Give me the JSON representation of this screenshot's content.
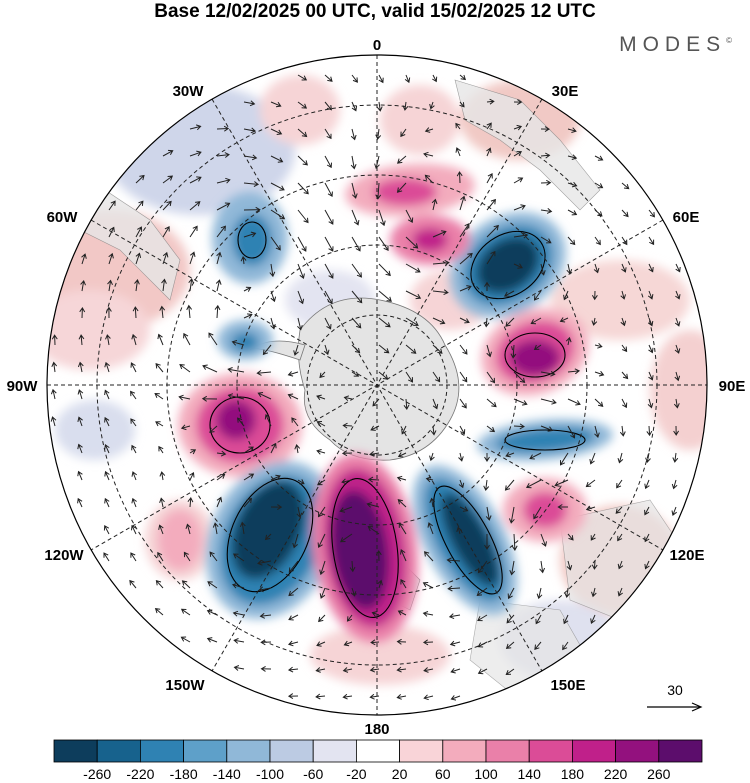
{
  "header": {
    "title": "Base 12/02/2025 00 UTC, valid 15/02/2025 12 UTC",
    "brand": "MODES",
    "brand_mark": "©"
  },
  "map": {
    "projection": "south-polar-stereographic",
    "longitude_labels": {
      "top": "0",
      "top_right_a": "30E",
      "top_right_b": "60E",
      "right": "90E",
      "bottom_right_a": "120E",
      "bottom_right_b": "150E",
      "bottom": "180",
      "bottom_left_a": "150W",
      "bottom_left_b": "120W",
      "left": "90W",
      "top_left_b": "60W",
      "top_left_a": "30W"
    },
    "reference_vector_label": "30"
  },
  "colorbar": {
    "colors": [
      "#0d3d5c",
      "#17628d",
      "#2f82b3",
      "#5ea0c9",
      "#90b8d8",
      "#bccbe3",
      "#e3e4f1",
      "#ffffff",
      "#f9d4d8",
      "#f3acbd",
      "#ea80a9",
      "#db4c97",
      "#c0208a",
      "#93117e",
      "#5c0d6c"
    ],
    "tick_labels": [
      "-260",
      "-220",
      "-180",
      "-140",
      "-100",
      "-60",
      "-20",
      "20",
      "60",
      "100",
      "140",
      "180",
      "220",
      "260"
    ]
  }
}
